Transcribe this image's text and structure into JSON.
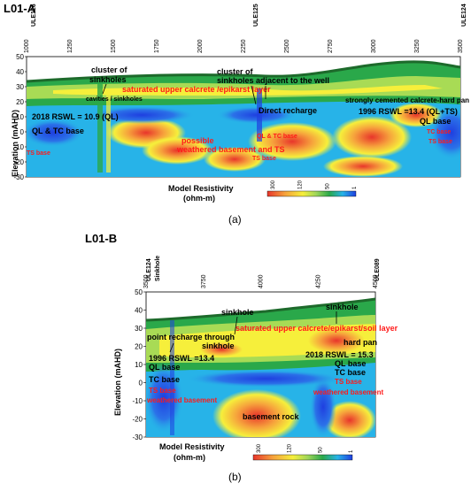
{
  "colors": {
    "blue": "#1f3fe0",
    "cyan": "#27b3e8",
    "green": "#2aa84a",
    "yellow": "#f6ef3b",
    "orange": "#f6a23c",
    "red": "#e8352b",
    "dark_green": "#1d6a2b",
    "annotation_red": "#ff1a1a"
  },
  "panel_a": {
    "title": "L01-A",
    "wells": [
      "ULE126",
      "ULE125",
      "ULE124"
    ],
    "x_ticks": [
      "1000",
      "1250",
      "1500",
      "1750",
      "2000",
      "2250",
      "2500",
      "2750",
      "3000",
      "3250",
      "3500"
    ],
    "y_ticks": [
      "50",
      "40",
      "30",
      "20",
      "10",
      "0",
      "-10",
      "-20",
      "-30"
    ],
    "ylabel": "Elevation (mAHD)",
    "labels": {
      "cluster1": "cluster of",
      "cluster1b": "sinkholes",
      "cavities": "cavities / sinkholes",
      "cluster2": "cluster of",
      "cluster2b": "sinkholes adjacent to the well",
      "saturated": "saturated upper calcrete /epikarst layer",
      "cemented": "strongly cemented calcrete-hard pan",
      "rswl2018": "2018 RSWL = 10.9 (QL)",
      "direct": "Direct recharge",
      "rswl1996": "1996 RSWL =13.4 (QL+TS)",
      "ql_base_r": "QL base",
      "ql_tc_base": "QL & TC base",
      "tc_base_r": "TC base",
      "ts_base_r": "TS base",
      "ts_base_l": "TS base",
      "ql_mid": "QL & TC base",
      "possible": "possible",
      "weathered": "weathered basement and TS",
      "ts_mid": "TS base"
    },
    "colorbar": {
      "title": "Model Resistivity",
      "unit": "(ohm-m)",
      "ticks": [
        "300",
        "120",
        "50",
        "1"
      ]
    },
    "caption": "(a)"
  },
  "panel_b": {
    "title": "L01-B",
    "wells": [
      "ULE124",
      "Sinkhole",
      "ULE089"
    ],
    "x_ticks": [
      "3500",
      "3750",
      "4000",
      "4250",
      "4500"
    ],
    "y_ticks": [
      "50",
      "40",
      "30",
      "20",
      "10",
      "0",
      "-10",
      "-20",
      "-30"
    ],
    "ylabel": "Elevation (mAHD)",
    "labels": {
      "sinkhole1": "sinkhole",
      "sinkhole2": "sinkhole",
      "saturated": "saturated upper calcrete/epikarst/soil layer",
      "point": "point recharge through",
      "point2": "sinkhole",
      "hardpan": "hard pan",
      "rswl1996": "1996 RSWL =13.4",
      "rswl2018": "2018 RSWL = 15.3",
      "ql_base_l": "QL base",
      "ql_base_r": "QL base",
      "tc_base_l": "TC base",
      "tc_base_r": "TC base",
      "ts_base_l": "TS base",
      "ts_base_r": "TS base",
      "weathered_l": "weathered basement",
      "weathered_r": "weathered basement",
      "basement": "basement rock"
    },
    "colorbar": {
      "title": "Model Resistivity",
      "unit": "(ohm-m)",
      "ticks": [
        "300",
        "120",
        "50",
        "1"
      ]
    },
    "caption": "(b)"
  }
}
